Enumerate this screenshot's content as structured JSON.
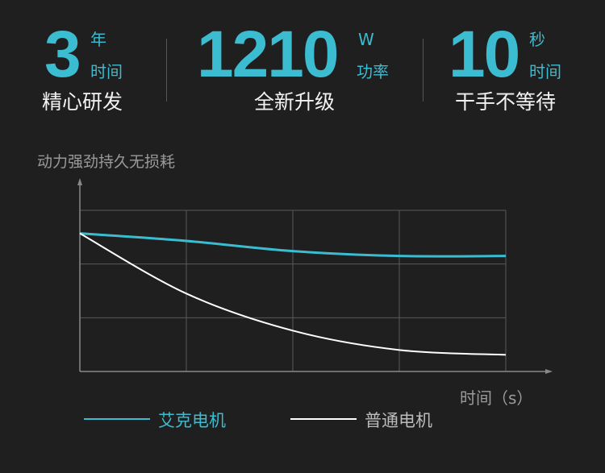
{
  "stats": [
    {
      "value": "3",
      "unit": "年",
      "sub": "时间",
      "caption": "精心研发"
    },
    {
      "value": "1210",
      "unit": "W",
      "sub": "功率",
      "caption": "全新升级"
    },
    {
      "value": "10",
      "unit": "秒",
      "sub": "时间",
      "caption": "干手不等待"
    }
  ],
  "colors": {
    "accent": "#3bbcd0",
    "background": "#1f1f1f",
    "secondary_line": "#ffffff"
  },
  "chart_data": {
    "type": "line",
    "title": "",
    "ylabel": "动力强劲持久无损耗",
    "xlabel": "时间（s）",
    "x": [
      0,
      1,
      2,
      3,
      4
    ],
    "xlim": [
      0,
      4
    ],
    "ylim": [
      0,
      3
    ],
    "grid": true,
    "legend": "bottom",
    "series": [
      {
        "name": "艾克电机",
        "color": "#3bbcd0",
        "values": [
          2.57,
          2.43,
          2.24,
          2.15,
          2.15
        ]
      },
      {
        "name": "普通电机",
        "color": "#ffffff",
        "values": [
          2.57,
          1.45,
          0.76,
          0.4,
          0.31
        ]
      }
    ]
  }
}
